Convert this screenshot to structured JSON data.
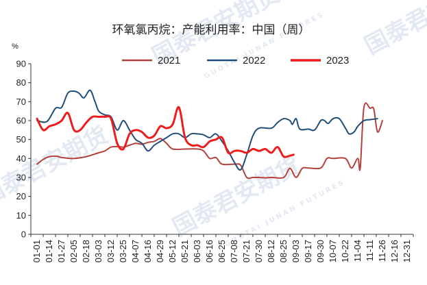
{
  "watermark": {
    "brand": "国泰君安期货",
    "sub": "GUOTAI JUNAN FUTURES"
  },
  "chart_data": {
    "type": "line",
    "title": "环氧氯丙烷：产能利用率：中国（周）",
    "unit_label": "%",
    "xlabel": "",
    "ylabel": "",
    "ylim": [
      0,
      90
    ],
    "yticks": [
      0,
      10,
      20,
      30,
      40,
      50,
      60,
      70,
      80,
      90
    ],
    "x_tick_labels": [
      "01-01",
      "01-14",
      "01-27",
      "02-05",
      "02-18",
      "03-03",
      "03-12",
      "03-25",
      "04-07",
      "04-16",
      "04-29",
      "05-12",
      "05-21",
      "06-03",
      "06-16",
      "06-25",
      "07-08",
      "07-21",
      "07-30",
      "08-12",
      "08-25",
      "09-03",
      "09-17",
      "09-30",
      "10-07",
      "10-22",
      "11-04",
      "11-11",
      "11-26",
      "12-16",
      "12-31"
    ],
    "legend_position": "top-center",
    "grid": false,
    "series": [
      {
        "name": "2021",
        "color": "#b5403a",
        "width": 2,
        "points": [
          [
            0,
            37
          ],
          [
            0.5,
            39.5
          ],
          [
            1,
            41
          ],
          [
            1.6,
            41.2
          ],
          [
            2,
            40.5
          ],
          [
            3,
            40
          ],
          [
            4,
            41
          ],
          [
            5,
            43
          ],
          [
            5.5,
            44
          ],
          [
            6,
            46
          ],
          [
            6.6,
            46.3
          ],
          [
            7,
            46
          ],
          [
            7.5,
            47
          ],
          [
            8,
            48
          ],
          [
            8.5,
            47.5
          ],
          [
            9,
            48.5
          ],
          [
            9.5,
            49
          ],
          [
            10,
            50.5
          ],
          [
            10.5,
            48
          ],
          [
            11,
            45
          ],
          [
            12,
            45
          ],
          [
            13,
            45
          ],
          [
            13.5,
            44
          ],
          [
            14,
            40
          ],
          [
            14.5,
            40.5
          ],
          [
            15,
            37
          ],
          [
            16,
            37
          ],
          [
            16.5,
            36.5
          ],
          [
            17,
            30
          ],
          [
            17.5,
            30
          ],
          [
            18,
            30
          ],
          [
            18.5,
            29.8
          ],
          [
            19,
            30
          ],
          [
            20,
            30
          ],
          [
            20.5,
            34.8
          ],
          [
            21,
            30
          ],
          [
            21.5,
            34.8
          ],
          [
            22,
            35
          ],
          [
            23,
            35
          ],
          [
            23.5,
            40
          ],
          [
            24,
            40
          ],
          [
            25,
            40
          ],
          [
            25.5,
            35
          ],
          [
            26,
            40
          ],
          [
            26.2,
            35
          ],
          [
            26.5,
            67
          ],
          [
            27,
            66.5
          ],
          [
            27.3,
            66
          ],
          [
            27.6,
            54
          ],
          [
            28,
            60
          ]
        ]
      },
      {
        "name": "2022",
        "color": "#1f4d7a",
        "width": 2,
        "points": [
          [
            0,
            60
          ],
          [
            0.8,
            59.5
          ],
          [
            1.5,
            66.5
          ],
          [
            2,
            67
          ],
          [
            2.5,
            74.5
          ],
          [
            3,
            75.5
          ],
          [
            3.4,
            74.5
          ],
          [
            3.8,
            72
          ],
          [
            4.3,
            76
          ],
          [
            4.7,
            70
          ],
          [
            5,
            65
          ],
          [
            5.5,
            63
          ],
          [
            6,
            62
          ],
          [
            6.5,
            55
          ],
          [
            7,
            60
          ],
          [
            7.5,
            55
          ],
          [
            8,
            50
          ],
          [
            8.5,
            48
          ],
          [
            9,
            44
          ],
          [
            9.5,
            47
          ],
          [
            10,
            49
          ],
          [
            10.5,
            51
          ],
          [
            11,
            53
          ],
          [
            11.5,
            53
          ],
          [
            12,
            51
          ],
          [
            12.5,
            53
          ],
          [
            13,
            53
          ],
          [
            13.5,
            52.5
          ],
          [
            14,
            51
          ],
          [
            14.5,
            53
          ],
          [
            15,
            49
          ],
          [
            15.5,
            44
          ],
          [
            16,
            38
          ],
          [
            16.5,
            34
          ],
          [
            17,
            42
          ],
          [
            17.5,
            52
          ],
          [
            18,
            56
          ],
          [
            19,
            56
          ],
          [
            19.5,
            59
          ],
          [
            20,
            61
          ],
          [
            20.5,
            60
          ],
          [
            20.7,
            58
          ],
          [
            21,
            61
          ],
          [
            21.3,
            55.5
          ],
          [
            22,
            55.5
          ],
          [
            22.5,
            55
          ],
          [
            23,
            60
          ],
          [
            23.3,
            60
          ],
          [
            23.6,
            58.5
          ],
          [
            24,
            61
          ],
          [
            24.5,
            61
          ],
          [
            25,
            56
          ],
          [
            25.3,
            53
          ],
          [
            25.7,
            54
          ],
          [
            26,
            57
          ],
          [
            26.5,
            60
          ],
          [
            27,
            60.5
          ],
          [
            27.6,
            61
          ]
        ]
      },
      {
        "name": "2023",
        "color": "#ee1c1c",
        "width": 3,
        "points": [
          [
            0,
            61
          ],
          [
            0.5,
            55
          ],
          [
            1,
            57
          ],
          [
            1.5,
            58
          ],
          [
            2,
            60
          ],
          [
            2.5,
            64
          ],
          [
            3,
            55
          ],
          [
            3.5,
            55
          ],
          [
            4,
            59
          ],
          [
            4.5,
            62
          ],
          [
            5,
            62
          ],
          [
            5.5,
            62
          ],
          [
            6,
            61
          ],
          [
            6.5,
            48
          ],
          [
            7,
            45
          ],
          [
            7.5,
            53
          ],
          [
            8,
            55
          ],
          [
            8.5,
            54
          ],
          [
            9,
            51
          ],
          [
            9.5,
            52
          ],
          [
            10,
            57
          ],
          [
            10.5,
            56
          ],
          [
            11,
            58
          ],
          [
            11.5,
            67
          ],
          [
            12,
            51
          ],
          [
            12.5,
            47
          ],
          [
            13,
            47
          ],
          [
            13.5,
            46
          ],
          [
            14,
            49
          ],
          [
            14.5,
            50
          ],
          [
            15,
            51
          ],
          [
            15.5,
            43
          ],
          [
            16,
            44
          ],
          [
            16.5,
            44
          ],
          [
            17,
            43
          ],
          [
            17.5,
            45
          ],
          [
            18,
            44
          ],
          [
            18.5,
            45
          ],
          [
            19,
            43
          ],
          [
            19.5,
            46
          ],
          [
            20,
            41
          ],
          [
            20.5,
            41.5
          ],
          [
            20.8,
            42
          ]
        ]
      }
    ]
  }
}
